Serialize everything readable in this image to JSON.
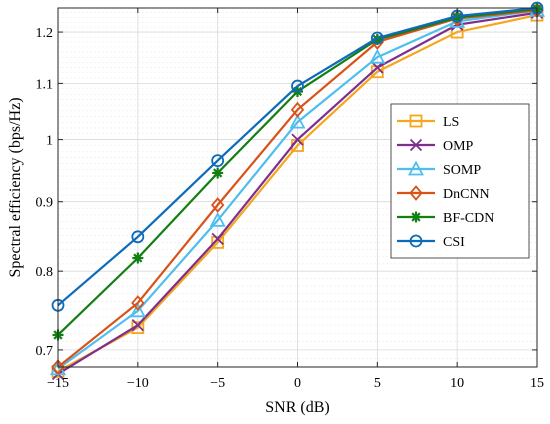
{
  "chart_data": {
    "type": "line",
    "title": "",
    "xlabel": "SNR (dB)",
    "ylabel": "Spectral efficiency (bps/Hz)",
    "y_scale": "log",
    "xlim": [
      -15,
      15
    ],
    "ylim": [
      0.68,
      1.25
    ],
    "xticks": [
      -15,
      -10,
      -5,
      0,
      5,
      10,
      15
    ],
    "xtick_labels": [
      "−15",
      "−10",
      "−5",
      "0",
      "5",
      "10",
      "15"
    ],
    "yticks": [
      0.7,
      0.8,
      0.9,
      1,
      1.1,
      1.2
    ],
    "ytick_labels": [
      "0.7",
      "0.8",
      "0.9",
      "1",
      "1.1",
      "1.2"
    ],
    "grid": true,
    "legend_position": "right",
    "x": [
      -15,
      -10,
      -5,
      0,
      5,
      10,
      15
    ],
    "series": [
      {
        "name": "LS",
        "color": "#f5a61c",
        "marker": "square",
        "values": [
          0.675,
          0.727,
          0.84,
          0.99,
          1.122,
          1.2,
          1.235
        ]
      },
      {
        "name": "OMP",
        "color": "#7e2f8e",
        "marker": "x",
        "values": [
          0.672,
          0.73,
          0.845,
          1.0,
          1.13,
          1.215,
          1.24
        ]
      },
      {
        "name": "SOMP",
        "color": "#4dbeee",
        "marker": "triangle",
        "values": [
          0.678,
          0.748,
          0.872,
          1.03,
          1.15,
          1.222,
          1.245
        ]
      },
      {
        "name": "DnCNN",
        "color": "#d95319",
        "marker": "diamond",
        "values": [
          0.68,
          0.758,
          0.895,
          1.052,
          1.18,
          1.228,
          1.245
        ]
      },
      {
        "name": "BF-CDN",
        "color": "#137f13",
        "marker": "asterisk",
        "values": [
          0.718,
          0.818,
          0.945,
          1.085,
          1.185,
          1.23,
          1.248
        ]
      },
      {
        "name": "CSI",
        "color": "#0e6bb8",
        "marker": "circle",
        "values": [
          0.755,
          0.848,
          0.965,
          1.095,
          1.188,
          1.233,
          1.25
        ]
      }
    ]
  }
}
